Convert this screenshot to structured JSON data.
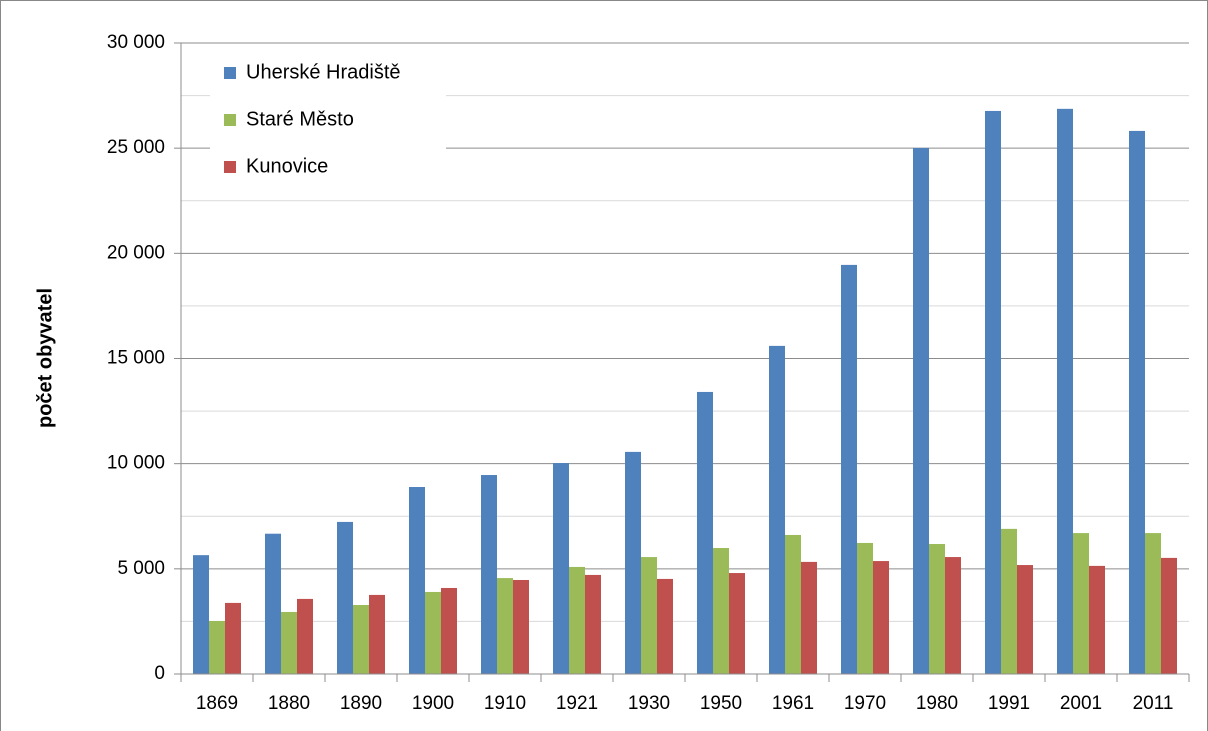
{
  "chart_data": {
    "type": "bar",
    "y_axis_label": "počet obyvatel",
    "categories": [
      "1869",
      "1880",
      "1890",
      "1900",
      "1910",
      "1921",
      "1930",
      "1950",
      "1961",
      "1970",
      "1980",
      "1991",
      "2001",
      "2011"
    ],
    "series": [
      {
        "name": "Uherské Hradiště",
        "color": "#4f81bd",
        "values": [
          5650,
          6670,
          7230,
          8890,
          9460,
          10030,
          10560,
          13410,
          15600,
          19450,
          25010,
          26770,
          26870,
          25820
        ]
      },
      {
        "name": "Staré Město",
        "color": "#9bbb59",
        "values": [
          2520,
          2950,
          3280,
          3900,
          4560,
          5090,
          5560,
          5990,
          6610,
          6230,
          6180,
          6900,
          6700,
          6700
        ]
      },
      {
        "name": "Kunovice",
        "color": "#c0504d",
        "values": [
          3380,
          3570,
          3760,
          4090,
          4470,
          4710,
          4520,
          4800,
          5330,
          5370,
          5560,
          5180,
          5140,
          5520
        ]
      }
    ],
    "ylim": [
      0,
      30000
    ],
    "yticks": [
      0,
      {
        "value": 5000,
        "label": "5 000"
      },
      {
        "value": 10000,
        "label": "10 000"
      },
      {
        "value": 15000,
        "label": "15 000"
      },
      {
        "value": 20000,
        "label": "20 000"
      },
      {
        "value": 25000,
        "label": "25 000"
      },
      {
        "value": 30000,
        "label": "30 000"
      }
    ],
    "minor_yticks": [
      2500,
      7500,
      12500,
      17500,
      22500,
      27500
    ],
    "grid": true,
    "legend": "upper-left"
  }
}
